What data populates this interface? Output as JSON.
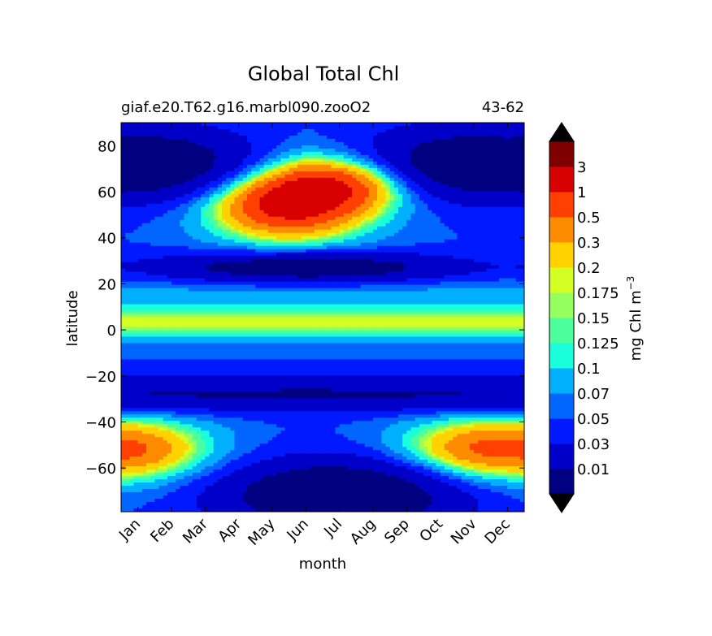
{
  "chart_data": {
    "type": "heatmap",
    "subtype": "filled-contour",
    "title": "Global Total Chl",
    "subtitle_left": "giaf.e20.T62.g16.marbl090.zooO2",
    "subtitle_right": "43-62",
    "xlabel": "month",
    "ylabel": "latitude",
    "x_categories": [
      "Jan",
      "Feb",
      "Mar",
      "Apr",
      "May",
      "Jun",
      "Jul",
      "Aug",
      "Sep",
      "Oct",
      "Nov",
      "Dec"
    ],
    "y_ticks": [
      80,
      60,
      40,
      20,
      0,
      -20,
      -40,
      -60
    ],
    "y_tick_labels": [
      "80",
      "60",
      "40",
      "20",
      "0",
      "−20",
      "−40",
      "−60"
    ],
    "ylim": [
      -79,
      90
    ],
    "xlim": [
      0.5,
      12.5
    ],
    "colorbar": {
      "label": "mg Chl m",
      "label_superscript": "−3",
      "levels": [
        0.01,
        0.03,
        0.05,
        0.07,
        0.1,
        0.125,
        0.15,
        0.175,
        0.2,
        0.3,
        0.5,
        1,
        3
      ],
      "tick_labels": [
        "0.01",
        "0.03",
        "0.05",
        "0.07",
        "0.1",
        "0.125",
        "0.15",
        "0.175",
        "0.2",
        "0.3",
        "0.5",
        "1",
        "3"
      ],
      "colors": [
        "#000080",
        "#0000c8",
        "#0019ff",
        "#0066ff",
        "#00b0ff",
        "#19ffdb",
        "#4dff9c",
        "#94ff5e",
        "#d4ff24",
        "#ffd200",
        "#ff8c00",
        "#ff4000",
        "#d80000",
        "#800000"
      ],
      "extend": "both",
      "extend_min_color": "#000000",
      "extend_max_color": "#000000"
    }
  }
}
